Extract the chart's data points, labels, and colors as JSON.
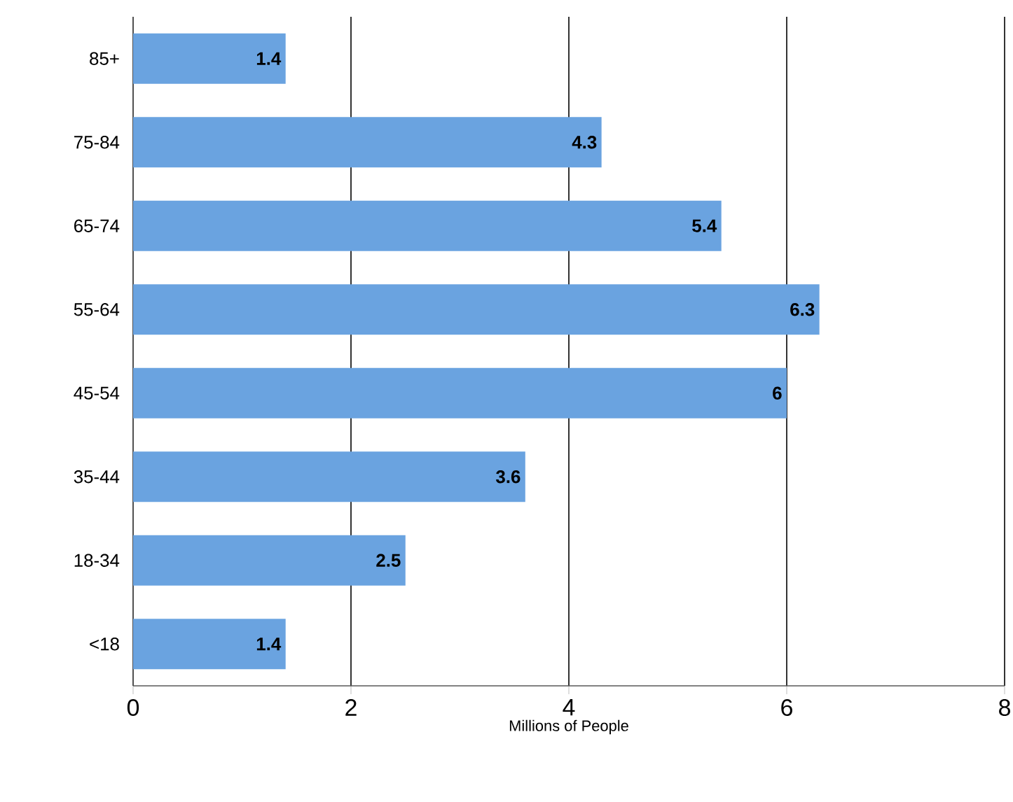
{
  "chart_data": {
    "type": "bar",
    "orientation": "horizontal",
    "xlabel": "Millions of People",
    "categories": [
      "85+",
      "75-84",
      "65-74",
      "55-64",
      "45-54",
      "35-44",
      "18-34",
      "<18"
    ],
    "values": [
      1.4,
      4.3,
      5.4,
      6.3,
      6,
      3.6,
      2.5,
      1.4
    ],
    "color": "#6aa3e0",
    "xlim": [
      0,
      8
    ],
    "xticks": [
      0,
      2,
      4,
      6,
      8
    ],
    "grid": "x",
    "data_labels": true
  }
}
